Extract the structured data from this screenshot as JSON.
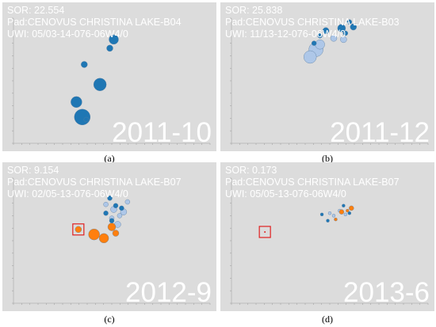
{
  "colors": {
    "background": "#dcdcdc",
    "overlay_text": "#ffffff",
    "current_injector": "#1f77b4",
    "previous_injector": "#aec7e8",
    "producer": "#ff7f0e",
    "highlight_box": "#e02020"
  },
  "panels": [
    {
      "caption": "(a)",
      "info": {
        "sor": "SOR: 22.554",
        "pad": "Pad:CENOVUS CHRISTINA LAKE-B04",
        "uwi": "UWI: 05/03-14-076-06W4/0"
      },
      "date": "2011-10",
      "highlight": false,
      "chart_data": {
        "type": "scatter",
        "xlabel": "",
        "ylabel": "",
        "xlim": [
          0,
          1
        ],
        "ylim": [
          0,
          1
        ],
        "grid": false,
        "series": [
          {
            "color": "current_injector",
            "points": [
              [
                0.51,
                0.83,
                6
              ],
              [
                0.49,
                0.76,
                4
              ],
              [
                0.36,
                0.63,
                4
              ],
              [
                0.44,
                0.47,
                8
              ],
              [
                0.32,
                0.33,
                7
              ],
              [
                0.35,
                0.21,
                10
              ],
              [
                0.37,
                0.19,
                3
              ]
            ]
          }
        ]
      }
    },
    {
      "caption": "(b)",
      "info": {
        "sor": "SOR: 25.838",
        "pad": "Pad:CENOVUS CHRISTINA LAKE-B03",
        "uwi": "UWI: 11/13-12-076-06W4/0"
      },
      "date": "2011-12",
      "highlight": false,
      "chart_data": {
        "type": "scatter",
        "xlabel": "",
        "ylabel": "",
        "xlim": [
          0,
          1
        ],
        "ylim": [
          0,
          1
        ],
        "grid": false,
        "series": [
          {
            "color": "previous_injector",
            "points": [
              [
                0.43,
                0.75,
                9
              ],
              [
                0.4,
                0.69,
                8
              ],
              [
                0.45,
                0.79,
                6
              ],
              [
                0.52,
                0.84,
                4
              ],
              [
                0.57,
                0.83,
                4
              ]
            ]
          },
          {
            "color": "current_injector",
            "points": [
              [
                0.56,
                0.92,
                5
              ],
              [
                0.62,
                0.93,
                4
              ],
              [
                0.6,
                0.97,
                3
              ],
              [
                0.48,
                0.9,
                4
              ],
              [
                0.45,
                0.86,
                3
              ],
              [
                0.42,
                0.8,
                3
              ],
              [
                0.58,
                0.88,
                3
              ]
            ]
          }
        ]
      }
    },
    {
      "caption": "(c)",
      "info": {
        "sor": "SOR: 9.154",
        "pad": "Pad:CENOVUS CHRISTINA LAKE-B07",
        "uwi": "UWI: 02/05-13-076-06W4/0"
      },
      "date": "2012-9",
      "highlight": true,
      "chart_data": {
        "type": "scatter",
        "xlabel": "",
        "ylabel": "",
        "xlim": [
          0,
          1
        ],
        "ylim": [
          0,
          1
        ],
        "grid": false,
        "series": [
          {
            "color": "previous_injector",
            "points": [
              [
                0.51,
                0.75,
                4
              ],
              [
                0.56,
                0.73,
                4
              ],
              [
                0.58,
                0.81,
                3
              ],
              [
                0.5,
                0.68,
                3
              ],
              [
                0.54,
                0.7,
                3
              ],
              [
                0.47,
                0.79,
                3
              ],
              [
                0.53,
                0.63,
                4
              ]
            ]
          },
          {
            "color": "producer",
            "points": [
              [
                0.46,
                0.52,
                6
              ],
              [
                0.41,
                0.55,
                7
              ],
              [
                0.5,
                0.61,
                5
              ],
              [
                0.52,
                0.56,
                4
              ],
              [
                0.33,
                0.59,
                4
              ]
            ]
          },
          {
            "color": "current_injector",
            "points": [
              [
                0.49,
                0.84,
                3
              ],
              [
                0.47,
                0.72,
                3
              ],
              [
                0.52,
                0.78,
                3
              ],
              [
                0.55,
                0.76,
                3
              ],
              [
                0.5,
                0.66,
                3
              ]
            ]
          }
        ]
      }
    },
    {
      "caption": "(d)",
      "info": {
        "sor": "SOR: 0.173",
        "pad": "Pad:CENOVUS CHRISTINA LAKE-B07",
        "uwi": "UWI: 05/05-13-076-06W4/0"
      },
      "date": "2013-6",
      "highlight": true,
      "chart_data": {
        "type": "scatter",
        "xlabel": "",
        "ylabel": "",
        "xlim": [
          0,
          1
        ],
        "ylim": [
          0,
          1
        ],
        "grid": false,
        "series": [
          {
            "color": "previous_injector",
            "points": [
              [
                0.52,
                0.7,
                2
              ],
              [
                0.55,
                0.74,
                2
              ],
              [
                0.5,
                0.72,
                2
              ],
              [
                0.58,
                0.71,
                2
              ]
            ]
          },
          {
            "color": "producer",
            "points": [
              [
                0.56,
                0.73,
                3
              ],
              [
                0.61,
                0.76,
                3
              ],
              [
                0.59,
                0.74,
                2
              ],
              [
                0.53,
                0.67,
                2
              ]
            ]
          },
          {
            "color": "current_injector",
            "points": [
              [
                0.46,
                0.71,
                2
              ],
              [
                0.49,
                0.66,
                2
              ],
              [
                0.57,
                0.78,
                2
              ],
              [
                0.6,
                0.72,
                2
              ]
            ]
          }
        ]
      }
    }
  ]
}
